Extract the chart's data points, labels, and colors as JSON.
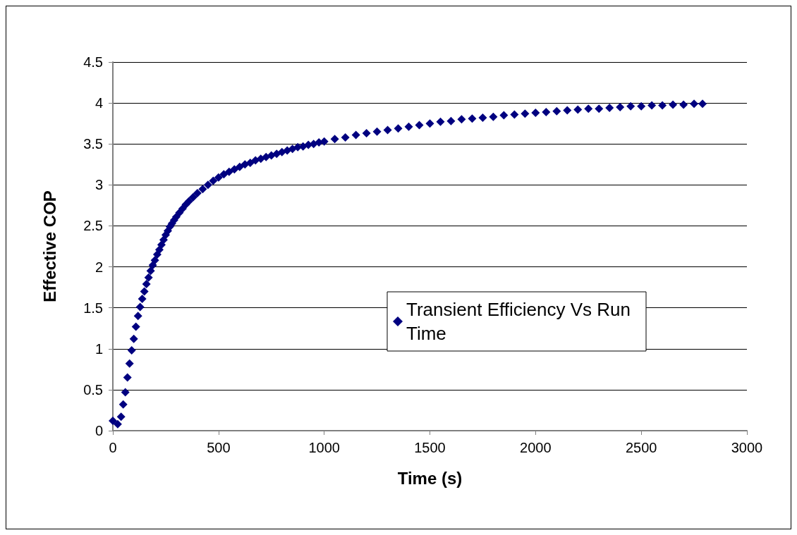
{
  "chart_data": {
    "type": "scatter",
    "xlabel": "Time (s)",
    "ylabel": "Effective COP",
    "xlim": [
      0,
      3000
    ],
    "xticks": [
      0,
      500,
      1000,
      1500,
      2000,
      2500,
      3000
    ],
    "ylim": [
      0,
      4.5
    ],
    "yticks": [
      0,
      0.5,
      1,
      1.5,
      2,
      2.5,
      3,
      3.5,
      4,
      4.5
    ],
    "grid": "y",
    "legend": "right",
    "marker": "diamond",
    "series": [
      {
        "name": "Transient Efficiency Vs Run Time",
        "color": "#000080",
        "x": [
          0,
          23,
          39,
          49,
          59,
          69,
          79,
          89,
          99,
          109,
          119,
          129,
          139,
          149,
          159,
          169,
          179,
          189,
          199,
          210,
          220,
          230,
          240,
          250,
          260,
          270,
          280,
          290,
          300,
          315,
          330,
          345,
          360,
          380,
          400,
          425,
          450,
          475,
          500,
          525,
          550,
          575,
          600,
          625,
          650,
          675,
          700,
          725,
          750,
          775,
          800,
          825,
          850,
          875,
          900,
          925,
          950,
          975,
          1000,
          1050,
          1100,
          1150,
          1200,
          1250,
          1300,
          1350,
          1400,
          1450,
          1500,
          1550,
          1600,
          1650,
          1700,
          1750,
          1800,
          1850,
          1900,
          1950,
          2000,
          2050,
          2100,
          2150,
          2200,
          2250,
          2300,
          2350,
          2400,
          2450,
          2500,
          2550,
          2600,
          2650,
          2700,
          2750,
          2790
        ],
        "values": [
          0.12,
          0.08,
          0.17,
          0.32,
          0.47,
          0.65,
          0.82,
          0.98,
          1.12,
          1.27,
          1.4,
          1.51,
          1.61,
          1.7,
          1.79,
          1.87,
          1.95,
          2.02,
          2.08,
          2.15,
          2.21,
          2.27,
          2.33,
          2.39,
          2.44,
          2.49,
          2.53,
          2.57,
          2.61,
          2.66,
          2.71,
          2.76,
          2.8,
          2.85,
          2.9,
          2.95,
          3.0,
          3.05,
          3.09,
          3.13,
          3.16,
          3.19,
          3.22,
          3.25,
          3.27,
          3.3,
          3.32,
          3.34,
          3.36,
          3.38,
          3.4,
          3.42,
          3.44,
          3.46,
          3.47,
          3.49,
          3.5,
          3.52,
          3.53,
          3.56,
          3.58,
          3.61,
          3.63,
          3.65,
          3.67,
          3.69,
          3.71,
          3.73,
          3.75,
          3.77,
          3.78,
          3.8,
          3.81,
          3.82,
          3.83,
          3.85,
          3.86,
          3.87,
          3.88,
          3.89,
          3.9,
          3.91,
          3.92,
          3.93,
          3.93,
          3.94,
          3.95,
          3.96,
          3.96,
          3.97,
          3.97,
          3.98,
          3.98,
          3.99,
          3.99
        ]
      }
    ]
  }
}
